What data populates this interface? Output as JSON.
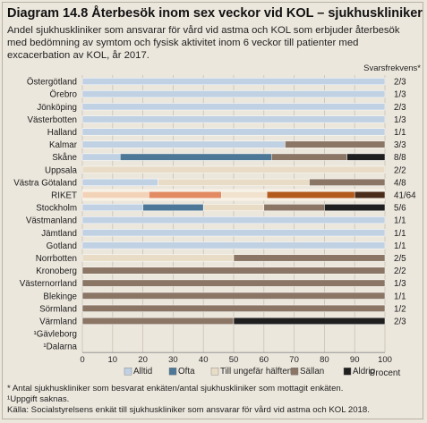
{
  "title": "Diagram 14.8 Återbesök inom sex veckor vid KOL – sjukhuskliniker",
  "subtitle": "Andel sjukhuskliniker som ansvarar för vård vid astma och KOL som erbjuder återbesök med bedömning av symtom och fysisk aktivitet inom 6 veckor till patienter med excacerbation av KOL, år 2017.",
  "notes": {
    "n1": "* Antal sjukhuskliniker som besvarat enkäten/antal sjukhuskliniker som mottagit enkäten.",
    "n2": "¹Uppgift saknas.",
    "n3": "Källa:  Socialstyrelsens enkät till sjukhuskliniker som ansvarar för vård vid astma och KOL 2018."
  },
  "chart_data": {
    "type": "bar",
    "orientation": "horizontal",
    "stacked": true,
    "categories": [
      "Östergötland",
      "Örebro",
      "Jönköping",
      "Västerbotten",
      "Halland",
      "Kalmar",
      "Skåne",
      "Uppsala",
      "Västra Götaland",
      "RIKET",
      "Stockholm",
      "Västmanland",
      "Jämtland",
      "Gotland",
      "Norrbotten",
      "Kronoberg",
      "Västernorrland",
      "Blekinge",
      "Sörmland",
      "Värmland",
      "¹Gävleborg",
      "¹Dalarna"
    ],
    "series": [
      {
        "name": "Alltid",
        "color": "#bfd1e3",
        "values": [
          100,
          100,
          100,
          100,
          100,
          67,
          12.5,
          0,
          25,
          22,
          20,
          100,
          100,
          100,
          0,
          0,
          0,
          0,
          0,
          0,
          null,
          null
        ]
      },
      {
        "name": "Ofta",
        "color": "#4d7796",
        "values": [
          0,
          0,
          0,
          0,
          0,
          0,
          50,
          0,
          0,
          24,
          20,
          0,
          0,
          0,
          0,
          0,
          0,
          0,
          0,
          0,
          null,
          null
        ]
      },
      {
        "name": "Till ungefär hälften",
        "color": "#e8dcc6",
        "values": [
          0,
          0,
          0,
          0,
          0,
          0,
          0,
          100,
          50,
          15,
          20,
          0,
          0,
          0,
          50,
          0,
          0,
          0,
          0,
          0,
          null,
          null
        ]
      },
      {
        "name": "Sällan",
        "color": "#8b7565",
        "values": [
          0,
          0,
          0,
          0,
          0,
          33,
          25,
          0,
          25,
          29,
          20,
          0,
          0,
          0,
          50,
          100,
          100,
          100,
          100,
          50,
          null,
          null
        ]
      },
      {
        "name": "Aldrig",
        "color": "#1f1f1f",
        "values": [
          0,
          0,
          0,
          0,
          0,
          0,
          12.5,
          0,
          0,
          10,
          20,
          0,
          0,
          0,
          0,
          0,
          0,
          0,
          0,
          50,
          null,
          null
        ]
      }
    ],
    "riket_colors": [
      "#f3d3b8",
      "#e28a62",
      "#f0e2cd",
      "#b35a1d",
      "#4a2c1a"
    ],
    "responses": [
      "2/3",
      "1/3",
      "2/3",
      "1/3",
      "1/1",
      "3/3",
      "8/8",
      "2/2",
      "4/8",
      "41/64",
      "5/6",
      "1/1",
      "1/1",
      "1/1",
      "2/5",
      "2/2",
      "1/3",
      "1/1",
      "1/2",
      "2/3",
      "",
      ""
    ],
    "response_header": "Svarsfrekvens*",
    "highlight_category": "RIKET",
    "xlabel": "Procent",
    "xlim": [
      0,
      100
    ],
    "xticks": [
      0,
      10,
      20,
      30,
      40,
      50,
      60,
      70,
      80,
      90,
      100
    ],
    "grid": true,
    "legend_position": "bottom"
  }
}
